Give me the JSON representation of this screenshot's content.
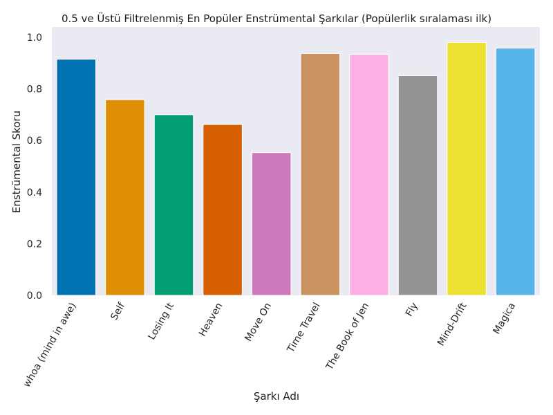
{
  "chart_data": {
    "type": "bar",
    "title": "0.5 ve Üstü Filtrelenmiş En Popüler Enstrümental Şarkılar (Popülerlik sıralaması ilk)",
    "xlabel": "Şarkı Adı",
    "ylabel": "Enstrümental Skoru",
    "ylim": [
      0,
      1.04
    ],
    "yticks": [
      "0.0",
      "0.2",
      "0.4",
      "0.6",
      "0.8",
      "1.0"
    ],
    "grid": false,
    "categories": [
      "whoa (mind in awe)",
      "Self",
      "Losing It",
      "Heaven",
      "Move On",
      "Time Travel",
      "The Book of Jen",
      "Fly",
      "Mind-Drift",
      "Magica"
    ],
    "values": [
      0.915,
      0.758,
      0.7,
      0.662,
      0.553,
      0.937,
      0.934,
      0.851,
      0.98,
      0.958
    ],
    "colors": [
      "#0173b2",
      "#de8f05",
      "#029e73",
      "#d55e00",
      "#cc78bc",
      "#ca9161",
      "#fbafe4",
      "#949494",
      "#ece133",
      "#56b4e9"
    ]
  }
}
